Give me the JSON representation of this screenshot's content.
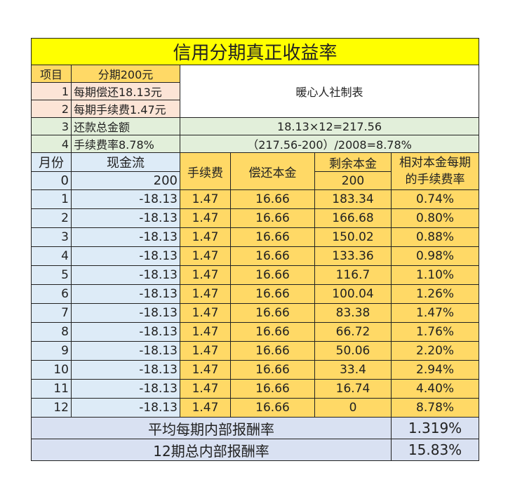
{
  "title": "信用分期真正收益率",
  "info": {
    "header_item": "项目",
    "header_value": "分期200元",
    "maker": "暖心人社制表",
    "rows": [
      {
        "no": "1",
        "label": "每期偿还18.13元"
      },
      {
        "no": "2",
        "label": "每期手续费1.47元"
      },
      {
        "no": "3",
        "label": "还款总金额",
        "formula": "18.13×12=217.56"
      },
      {
        "no": "4",
        "label": "手续费率8.78%",
        "formula": "（217.56-200）/2008=8.78%"
      }
    ]
  },
  "columns": {
    "month": "月份",
    "cashflow": "现金流",
    "fee": "手续费",
    "principal_paid": "偿还本金",
    "remaining": "剩余本金",
    "rate": "相对本金每期的手续费率"
  },
  "initial": {
    "month": "0",
    "cashflow": "200",
    "remaining": "200"
  },
  "rows": [
    [
      "1",
      "-18.13",
      "1.47",
      "16.66",
      "183.34",
      "0.74%"
    ],
    [
      "2",
      "-18.13",
      "1.47",
      "16.66",
      "166.68",
      "0.80%"
    ],
    [
      "3",
      "-18.13",
      "1.47",
      "16.66",
      "150.02",
      "0.88%"
    ],
    [
      "4",
      "-18.13",
      "1.47",
      "16.66",
      "133.36",
      "0.98%"
    ],
    [
      "5",
      "-18.13",
      "1.47",
      "16.66",
      "116.7",
      "1.10%"
    ],
    [
      "6",
      "-18.13",
      "1.47",
      "16.66",
      "100.04",
      "1.26%"
    ],
    [
      "7",
      "-18.13",
      "1.47",
      "16.66",
      "83.38",
      "1.47%"
    ],
    [
      "8",
      "-18.13",
      "1.47",
      "16.66",
      "66.72",
      "1.76%"
    ],
    [
      "9",
      "-18.13",
      "1.47",
      "16.66",
      "50.06",
      "2.20%"
    ],
    [
      "10",
      "-18.13",
      "1.47",
      "16.66",
      "33.4",
      "2.94%"
    ],
    [
      "11",
      "-18.13",
      "1.47",
      "16.66",
      "16.74",
      "4.40%"
    ],
    [
      "12",
      "-18.13",
      "1.47",
      "16.66",
      "0",
      "8.78%"
    ]
  ],
  "footer": [
    {
      "label": "平均每期内部报酬率",
      "value": "1.319%"
    },
    {
      "label": "12期总内部报酬率",
      "value": "15.83%"
    }
  ]
}
